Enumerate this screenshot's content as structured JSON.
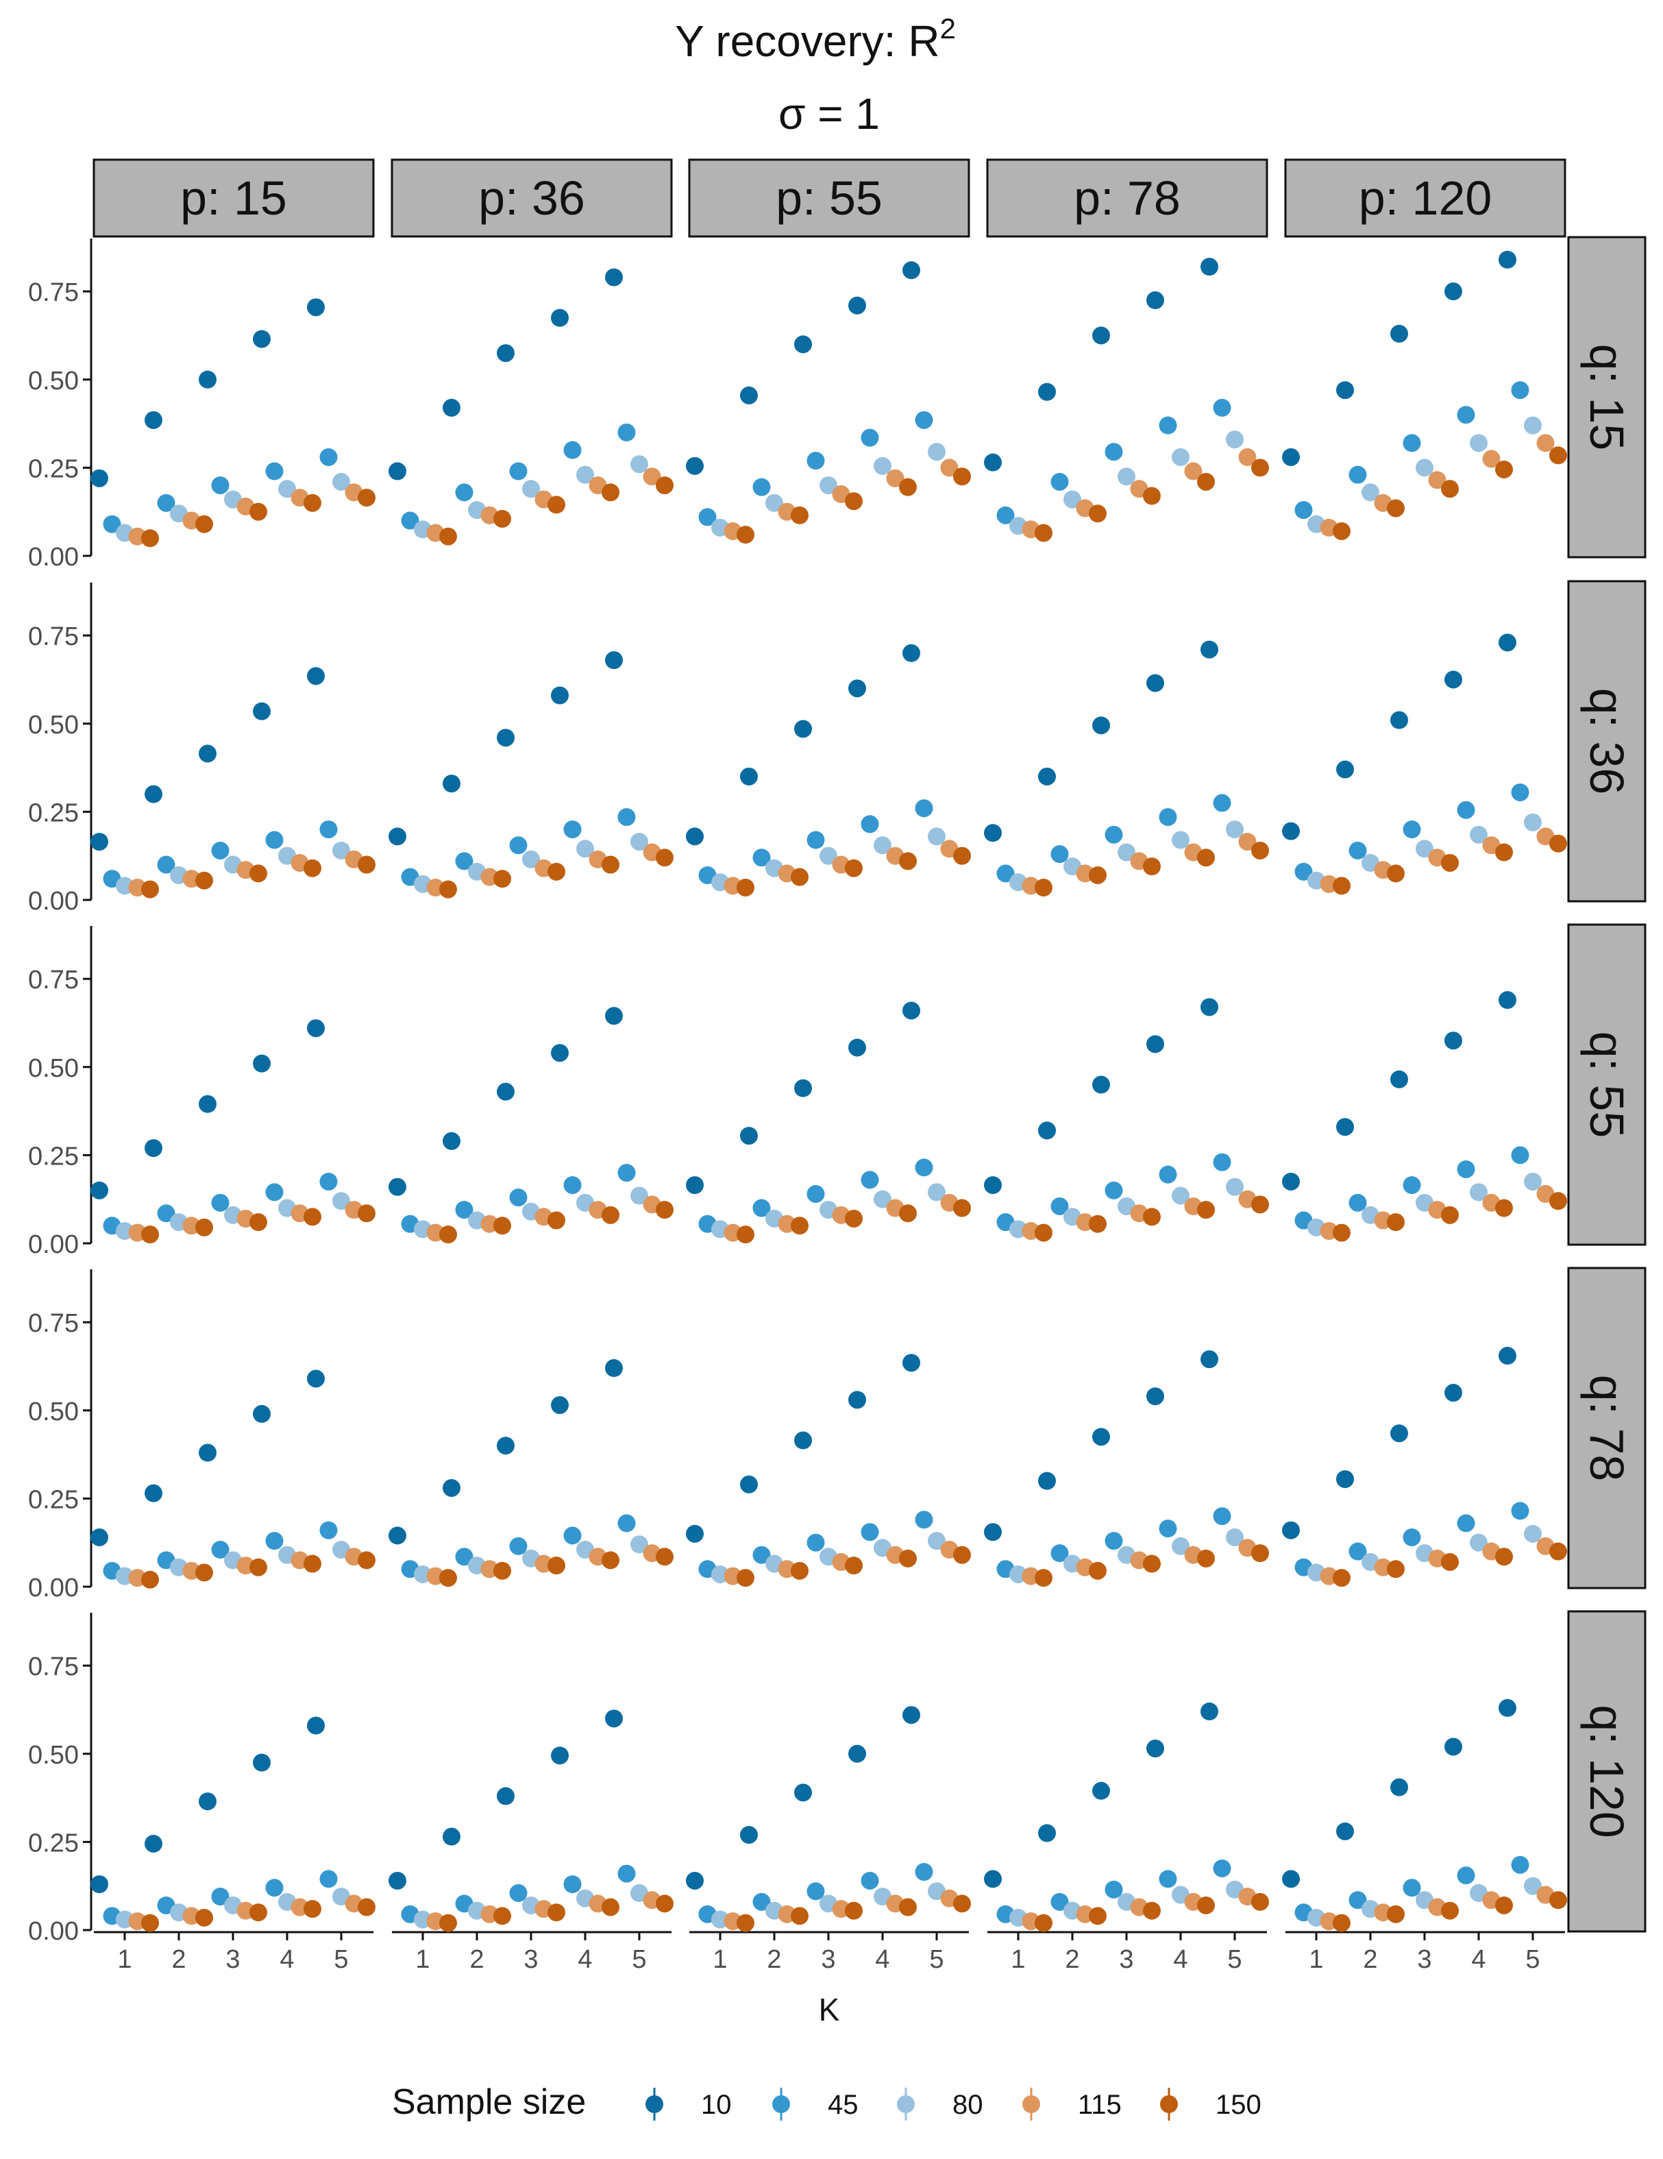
{
  "chart_data": {
    "type": "scatter",
    "title": "Y recovery: R",
    "title_superscript": "2",
    "subtitle": "σ = 1",
    "xlabel": "K",
    "ylabel": "",
    "x": [
      1,
      2,
      3,
      4,
      5
    ],
    "x_tick_labels": [
      "1",
      "2",
      "3",
      "4",
      "5"
    ],
    "ylim": [
      0,
      0.9
    ],
    "y_ticks": [
      0,
      0.25,
      0.5,
      0.75
    ],
    "y_tick_labels": [
      "0.00",
      "0.25",
      "0.50",
      "0.75"
    ],
    "grid": false,
    "legend": {
      "title": "Sample size",
      "position": "bottom",
      "entries": [
        "10",
        "45",
        "80",
        "115",
        "150"
      ]
    },
    "colors": [
      "#0A6BA0",
      "#3597CF",
      "#97C1DE",
      "#DE965C",
      "#BF5E0E"
    ],
    "facet_columns": [
      "p: 15",
      "p: 36",
      "p: 55",
      "p: 78",
      "p: 120"
    ],
    "facet_rows": [
      "q: 15",
      "q: 36",
      "q: 55",
      "q: 78",
      "q: 120"
    ],
    "panels": [
      [
        [
          [
            0.22,
            0.385,
            0.5,
            0.615,
            0.705
          ],
          [
            0.09,
            0.15,
            0.2,
            0.24,
            0.28
          ],
          [
            0.065,
            0.12,
            0.16,
            0.19,
            0.21
          ],
          [
            0.055,
            0.1,
            0.14,
            0.165,
            0.18
          ],
          [
            0.05,
            0.09,
            0.125,
            0.15,
            0.165
          ]
        ],
        [
          [
            0.24,
            0.42,
            0.575,
            0.675,
            0.79
          ],
          [
            0.1,
            0.18,
            0.24,
            0.3,
            0.35
          ],
          [
            0.075,
            0.13,
            0.19,
            0.23,
            0.26
          ],
          [
            0.065,
            0.115,
            0.16,
            0.2,
            0.225
          ],
          [
            0.055,
            0.105,
            0.145,
            0.18,
            0.2
          ]
        ],
        [
          [
            0.255,
            0.455,
            0.6,
            0.71,
            0.81
          ],
          [
            0.11,
            0.195,
            0.27,
            0.335,
            0.385
          ],
          [
            0.08,
            0.15,
            0.2,
            0.255,
            0.295
          ],
          [
            0.07,
            0.125,
            0.175,
            0.22,
            0.25
          ],
          [
            0.06,
            0.115,
            0.155,
            0.195,
            0.225
          ]
        ],
        [
          [
            0.265,
            0.465,
            0.625,
            0.725,
            0.82
          ],
          [
            0.115,
            0.21,
            0.295,
            0.37,
            0.42
          ],
          [
            0.085,
            0.16,
            0.225,
            0.28,
            0.33
          ],
          [
            0.075,
            0.135,
            0.19,
            0.24,
            0.28
          ],
          [
            0.065,
            0.12,
            0.17,
            0.21,
            0.25
          ]
        ],
        [
          [
            0.28,
            0.47,
            0.63,
            0.75,
            0.84
          ],
          [
            0.13,
            0.23,
            0.32,
            0.4,
            0.47
          ],
          [
            0.09,
            0.18,
            0.25,
            0.32,
            0.37
          ],
          [
            0.08,
            0.15,
            0.215,
            0.275,
            0.32
          ],
          [
            0.07,
            0.135,
            0.19,
            0.245,
            0.285
          ]
        ]
      ],
      [
        [
          [
            0.165,
            0.3,
            0.415,
            0.535,
            0.635
          ],
          [
            0.06,
            0.1,
            0.14,
            0.17,
            0.2
          ],
          [
            0.04,
            0.07,
            0.1,
            0.125,
            0.14
          ],
          [
            0.035,
            0.06,
            0.085,
            0.105,
            0.115
          ],
          [
            0.03,
            0.055,
            0.075,
            0.09,
            0.1
          ]
        ],
        [
          [
            0.18,
            0.33,
            0.46,
            0.58,
            0.68
          ],
          [
            0.065,
            0.11,
            0.155,
            0.2,
            0.235
          ],
          [
            0.045,
            0.08,
            0.115,
            0.145,
            0.165
          ],
          [
            0.035,
            0.065,
            0.09,
            0.115,
            0.135
          ],
          [
            0.03,
            0.06,
            0.08,
            0.1,
            0.12
          ]
        ],
        [
          [
            0.18,
            0.35,
            0.485,
            0.6,
            0.7
          ],
          [
            0.07,
            0.12,
            0.17,
            0.215,
            0.26
          ],
          [
            0.05,
            0.09,
            0.125,
            0.155,
            0.18
          ],
          [
            0.04,
            0.075,
            0.1,
            0.125,
            0.145
          ],
          [
            0.035,
            0.065,
            0.09,
            0.11,
            0.125
          ]
        ],
        [
          [
            0.19,
            0.35,
            0.495,
            0.615,
            0.71
          ],
          [
            0.075,
            0.13,
            0.185,
            0.235,
            0.275
          ],
          [
            0.05,
            0.095,
            0.135,
            0.17,
            0.2
          ],
          [
            0.04,
            0.075,
            0.11,
            0.135,
            0.165
          ],
          [
            0.035,
            0.07,
            0.095,
            0.12,
            0.14
          ]
        ],
        [
          [
            0.195,
            0.37,
            0.51,
            0.625,
            0.73
          ],
          [
            0.08,
            0.14,
            0.2,
            0.255,
            0.305
          ],
          [
            0.055,
            0.105,
            0.145,
            0.185,
            0.22
          ],
          [
            0.045,
            0.085,
            0.12,
            0.155,
            0.18
          ],
          [
            0.04,
            0.075,
            0.105,
            0.135,
            0.16
          ]
        ]
      ],
      [
        [
          [
            0.15,
            0.27,
            0.395,
            0.51,
            0.61
          ],
          [
            0.05,
            0.085,
            0.115,
            0.145,
            0.175
          ],
          [
            0.035,
            0.06,
            0.08,
            0.1,
            0.12
          ],
          [
            0.03,
            0.05,
            0.07,
            0.085,
            0.095
          ],
          [
            0.025,
            0.045,
            0.06,
            0.075,
            0.085
          ]
        ],
        [
          [
            0.16,
            0.29,
            0.43,
            0.54,
            0.645
          ],
          [
            0.055,
            0.095,
            0.13,
            0.165,
            0.2
          ],
          [
            0.04,
            0.065,
            0.09,
            0.115,
            0.135
          ],
          [
            0.03,
            0.055,
            0.075,
            0.095,
            0.11
          ],
          [
            0.025,
            0.05,
            0.065,
            0.08,
            0.095
          ]
        ],
        [
          [
            0.165,
            0.305,
            0.44,
            0.555,
            0.66
          ],
          [
            0.055,
            0.1,
            0.14,
            0.18,
            0.215
          ],
          [
            0.04,
            0.07,
            0.095,
            0.125,
            0.145
          ],
          [
            0.03,
            0.055,
            0.08,
            0.1,
            0.115
          ],
          [
            0.025,
            0.05,
            0.07,
            0.085,
            0.1
          ]
        ],
        [
          [
            0.165,
            0.32,
            0.45,
            0.565,
            0.67
          ],
          [
            0.06,
            0.105,
            0.15,
            0.195,
            0.23
          ],
          [
            0.04,
            0.075,
            0.105,
            0.135,
            0.16
          ],
          [
            0.035,
            0.06,
            0.085,
            0.105,
            0.125
          ],
          [
            0.03,
            0.055,
            0.075,
            0.095,
            0.11
          ]
        ],
        [
          [
            0.175,
            0.33,
            0.465,
            0.575,
            0.69
          ],
          [
            0.065,
            0.115,
            0.165,
            0.21,
            0.25
          ],
          [
            0.045,
            0.08,
            0.115,
            0.145,
            0.175
          ],
          [
            0.035,
            0.065,
            0.095,
            0.115,
            0.14
          ],
          [
            0.03,
            0.06,
            0.08,
            0.1,
            0.12
          ]
        ]
      ],
      [
        [
          [
            0.14,
            0.265,
            0.38,
            0.49,
            0.59
          ],
          [
            0.045,
            0.075,
            0.105,
            0.13,
            0.16
          ],
          [
            0.03,
            0.055,
            0.075,
            0.09,
            0.105
          ],
          [
            0.025,
            0.045,
            0.06,
            0.075,
            0.085
          ],
          [
            0.02,
            0.04,
            0.055,
            0.065,
            0.075
          ]
        ],
        [
          [
            0.145,
            0.28,
            0.4,
            0.515,
            0.62
          ],
          [
            0.05,
            0.085,
            0.115,
            0.145,
            0.18
          ],
          [
            0.035,
            0.06,
            0.08,
            0.105,
            0.12
          ],
          [
            0.03,
            0.05,
            0.065,
            0.085,
            0.095
          ],
          [
            0.025,
            0.045,
            0.06,
            0.075,
            0.085
          ]
        ],
        [
          [
            0.15,
            0.29,
            0.415,
            0.53,
            0.635
          ],
          [
            0.05,
            0.09,
            0.125,
            0.155,
            0.19
          ],
          [
            0.035,
            0.065,
            0.085,
            0.11,
            0.13
          ],
          [
            0.03,
            0.05,
            0.07,
            0.09,
            0.105
          ],
          [
            0.025,
            0.045,
            0.06,
            0.08,
            0.09
          ]
        ],
        [
          [
            0.155,
            0.3,
            0.425,
            0.54,
            0.645
          ],
          [
            0.05,
            0.095,
            0.13,
            0.165,
            0.2
          ],
          [
            0.035,
            0.065,
            0.09,
            0.115,
            0.14
          ],
          [
            0.03,
            0.055,
            0.075,
            0.09,
            0.11
          ],
          [
            0.025,
            0.045,
            0.065,
            0.08,
            0.095
          ]
        ],
        [
          [
            0.16,
            0.305,
            0.435,
            0.55,
            0.655
          ],
          [
            0.055,
            0.1,
            0.14,
            0.18,
            0.215
          ],
          [
            0.04,
            0.07,
            0.095,
            0.125,
            0.15
          ],
          [
            0.03,
            0.055,
            0.08,
            0.1,
            0.115
          ],
          [
            0.025,
            0.05,
            0.07,
            0.085,
            0.1
          ]
        ]
      ],
      [
        [
          [
            0.13,
            0.245,
            0.365,
            0.475,
            0.58
          ],
          [
            0.04,
            0.07,
            0.095,
            0.12,
            0.145
          ],
          [
            0.03,
            0.05,
            0.07,
            0.08,
            0.095
          ],
          [
            0.025,
            0.04,
            0.055,
            0.065,
            0.075
          ],
          [
            0.02,
            0.035,
            0.05,
            0.06,
            0.065
          ]
        ],
        [
          [
            0.14,
            0.265,
            0.38,
            0.495,
            0.6
          ],
          [
            0.045,
            0.075,
            0.105,
            0.13,
            0.16
          ],
          [
            0.03,
            0.055,
            0.07,
            0.09,
            0.105
          ],
          [
            0.025,
            0.045,
            0.06,
            0.075,
            0.085
          ],
          [
            0.02,
            0.04,
            0.05,
            0.065,
            0.075
          ]
        ],
        [
          [
            0.14,
            0.27,
            0.39,
            0.5,
            0.61
          ],
          [
            0.045,
            0.08,
            0.11,
            0.14,
            0.165
          ],
          [
            0.03,
            0.055,
            0.075,
            0.095,
            0.11
          ],
          [
            0.025,
            0.045,
            0.06,
            0.075,
            0.09
          ],
          [
            0.02,
            0.04,
            0.055,
            0.065,
            0.075
          ]
        ],
        [
          [
            0.145,
            0.275,
            0.395,
            0.515,
            0.62
          ],
          [
            0.045,
            0.08,
            0.115,
            0.145,
            0.175
          ],
          [
            0.035,
            0.055,
            0.08,
            0.1,
            0.115
          ],
          [
            0.025,
            0.045,
            0.065,
            0.08,
            0.095
          ],
          [
            0.02,
            0.04,
            0.055,
            0.07,
            0.08
          ]
        ],
        [
          [
            0.145,
            0.28,
            0.405,
            0.52,
            0.63
          ],
          [
            0.05,
            0.085,
            0.12,
            0.155,
            0.185
          ],
          [
            0.035,
            0.06,
            0.085,
            0.105,
            0.125
          ],
          [
            0.025,
            0.05,
            0.065,
            0.085,
            0.1
          ],
          [
            0.02,
            0.045,
            0.055,
            0.07,
            0.085
          ]
        ]
      ]
    ]
  }
}
